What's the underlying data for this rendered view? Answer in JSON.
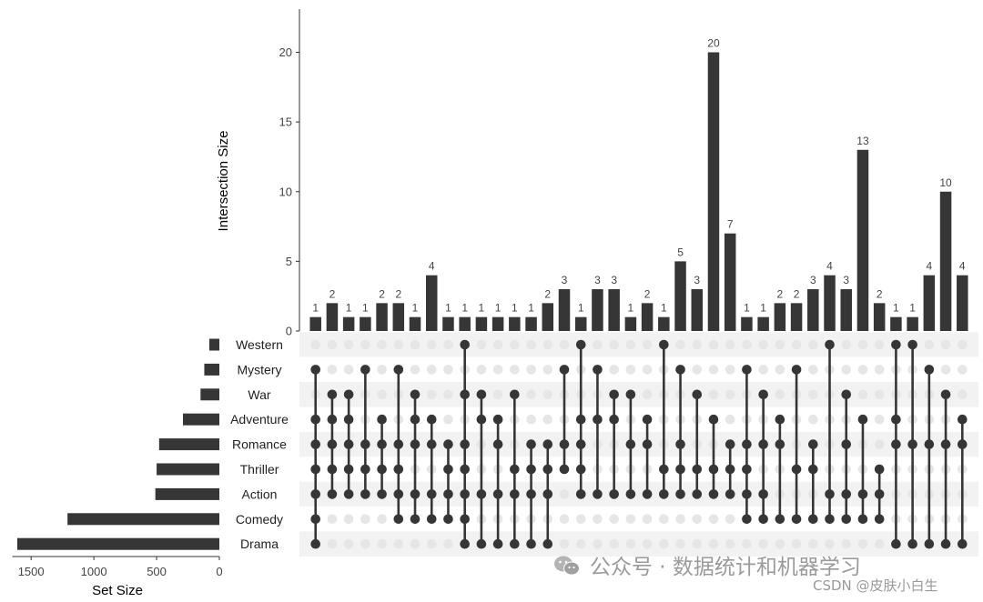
{
  "chart_data": {
    "type": "upset",
    "ylabel": "Intersection Size",
    "ylim": [
      0,
      22.6
    ],
    "yticks": [
      0,
      5,
      10,
      15,
      20
    ],
    "set_size_label": "Set Size",
    "set_size_xlim": [
      1650,
      0
    ],
    "set_size_ticks": [
      1500,
      1000,
      500,
      0
    ],
    "sets": [
      {
        "name": "Western",
        "size": 80
      },
      {
        "name": "Mystery",
        "size": 120
      },
      {
        "name": "War",
        "size": 150
      },
      {
        "name": "Adventure",
        "size": 290
      },
      {
        "name": "Romance",
        "size": 480
      },
      {
        "name": "Thriller",
        "size": 500
      },
      {
        "name": "Action",
        "size": 510
      },
      {
        "name": "Comedy",
        "size": 1210
      },
      {
        "name": "Drama",
        "size": 1610
      }
    ],
    "intersections": [
      {
        "value": 1,
        "sets": [
          "Mystery",
          "Adventure",
          "Romance",
          "Thriller",
          "Action",
          "Comedy",
          "Drama"
        ]
      },
      {
        "value": 2,
        "sets": [
          "War",
          "Adventure",
          "Romance",
          "Thriller",
          "Action"
        ]
      },
      {
        "value": 1,
        "sets": [
          "War",
          "Adventure",
          "Romance",
          "Thriller",
          "Action"
        ]
      },
      {
        "value": 1,
        "sets": [
          "Mystery",
          "Romance",
          "Thriller",
          "Action"
        ]
      },
      {
        "value": 2,
        "sets": [
          "Adventure",
          "Romance",
          "Thriller",
          "Action"
        ]
      },
      {
        "value": 2,
        "sets": [
          "Mystery",
          "Romance",
          "Thriller",
          "Action",
          "Comedy"
        ]
      },
      {
        "value": 1,
        "sets": [
          "War",
          "Adventure",
          "Romance",
          "Action",
          "Comedy"
        ]
      },
      {
        "value": 4,
        "sets": [
          "Adventure",
          "Romance",
          "Action",
          "Comedy"
        ]
      },
      {
        "value": 1,
        "sets": [
          "Romance",
          "Thriller",
          "Action",
          "Comedy"
        ]
      },
      {
        "value": 1,
        "sets": [
          "Western",
          "War",
          "Romance",
          "Thriller",
          "Action",
          "Comedy",
          "Drama"
        ]
      },
      {
        "value": 1,
        "sets": [
          "War",
          "Adventure",
          "Action",
          "Drama"
        ]
      },
      {
        "value": 1,
        "sets": [
          "Adventure",
          "Romance",
          "Action",
          "Drama"
        ]
      },
      {
        "value": 1,
        "sets": [
          "War",
          "Thriller",
          "Action",
          "Drama"
        ]
      },
      {
        "value": 1,
        "sets": [
          "Romance",
          "Thriller",
          "Action",
          "Drama"
        ]
      },
      {
        "value": 2,
        "sets": [
          "Romance",
          "Thriller",
          "Action",
          "Drama"
        ]
      },
      {
        "value": 3,
        "sets": [
          "Mystery",
          "Romance",
          "Thriller"
        ]
      },
      {
        "value": 1,
        "sets": [
          "Western",
          "Adventure",
          "Romance",
          "Thriller",
          "Action"
        ]
      },
      {
        "value": 3,
        "sets": [
          "Mystery",
          "Adventure",
          "Action"
        ]
      },
      {
        "value": 3,
        "sets": [
          "War",
          "Adventure",
          "Action"
        ]
      },
      {
        "value": 1,
        "sets": [
          "War",
          "Romance",
          "Action"
        ]
      },
      {
        "value": 2,
        "sets": [
          "Adventure",
          "Romance",
          "Action"
        ]
      },
      {
        "value": 1,
        "sets": [
          "Western",
          "Thriller",
          "Action"
        ]
      },
      {
        "value": 5,
        "sets": [
          "Mystery",
          "Romance",
          "Thriller",
          "Action"
        ]
      },
      {
        "value": 3,
        "sets": [
          "War",
          "Thriller",
          "Action"
        ]
      },
      {
        "value": 20,
        "sets": [
          "Adventure",
          "Thriller",
          "Action"
        ]
      },
      {
        "value": 7,
        "sets": [
          "Romance",
          "Thriller",
          "Action"
        ]
      },
      {
        "value": 1,
        "sets": [
          "Mystery",
          "Romance",
          "Thriller",
          "Action",
          "Comedy"
        ]
      },
      {
        "value": 1,
        "sets": [
          "War",
          "Romance",
          "Action",
          "Comedy"
        ]
      },
      {
        "value": 2,
        "sets": [
          "Adventure",
          "Romance",
          "Comedy"
        ]
      },
      {
        "value": 2,
        "sets": [
          "Mystery",
          "Thriller",
          "Comedy"
        ]
      },
      {
        "value": 3,
        "sets": [
          "Romance",
          "Thriller",
          "Comedy"
        ]
      },
      {
        "value": 4,
        "sets": [
          "Western",
          "Action",
          "Comedy"
        ]
      },
      {
        "value": 3,
        "sets": [
          "War",
          "Romance",
          "Action",
          "Comedy"
        ]
      },
      {
        "value": 13,
        "sets": [
          "Adventure",
          "Action",
          "Comedy"
        ]
      },
      {
        "value": 2,
        "sets": [
          "Thriller",
          "Action",
          "Comedy"
        ]
      },
      {
        "value": 1,
        "sets": [
          "Western",
          "Adventure",
          "Romance",
          "Drama"
        ]
      },
      {
        "value": 1,
        "sets": [
          "Western",
          "Romance",
          "Drama"
        ]
      },
      {
        "value": 4,
        "sets": [
          "Mystery",
          "Romance",
          "Drama"
        ]
      },
      {
        "value": 10,
        "sets": [
          "War",
          "Romance",
          "Drama"
        ]
      },
      {
        "value": 4,
        "sets": [
          "Adventure",
          "Romance",
          "Drama"
        ]
      }
    ],
    "colors": {
      "bar": "#363636",
      "dot_active": "#363636",
      "dot_inactive": "#e6e6e6",
      "stripe": "#f2f2f2"
    }
  },
  "watermark": {
    "main": "公众号 · 数据统计和机器学习",
    "sub": "CSDN @皮肤小白生"
  }
}
